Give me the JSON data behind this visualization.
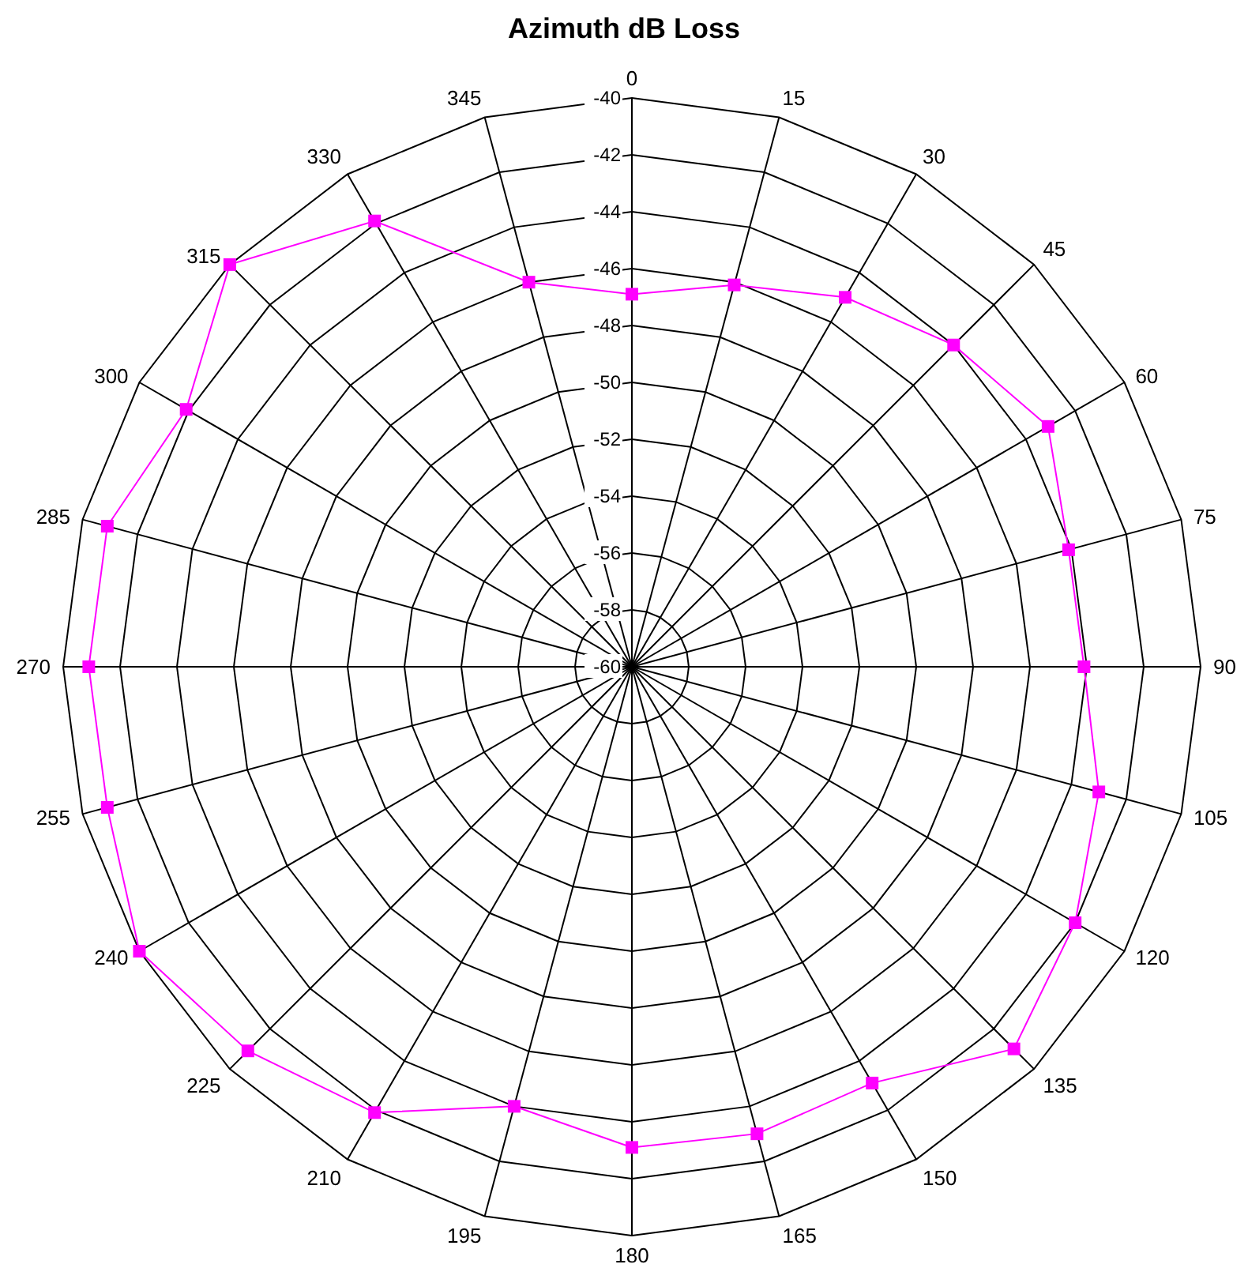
{
  "chart_data": {
    "type": "radar",
    "title": "Azimuth dB Loss",
    "categories": [
      "0",
      "15",
      "30",
      "45",
      "60",
      "75",
      "90",
      "105",
      "120",
      "135",
      "150",
      "165",
      "180",
      "195",
      "210",
      "225",
      "240",
      "255",
      "270",
      "285",
      "300",
      "315",
      "330",
      "345"
    ],
    "series": [
      {
        "color": "#ff00ff",
        "values": [
          -46.9,
          -46.1,
          -45.0,
          -44.0,
          -43.1,
          -44.1,
          -44.1,
          -43.0,
          -42.0,
          -41.0,
          -43.1,
          -43.0,
          -43.1,
          -44.0,
          -41.9,
          -40.9,
          -40.0,
          -40.9,
          -40.9,
          -40.9,
          -41.9,
          -40.0,
          -41.9,
          -46.0
        ]
      }
    ],
    "ylim": [
      -60,
      -40
    ],
    "yticks": [
      -60,
      -58,
      -56,
      -54,
      -52,
      -50,
      -48,
      -46,
      -44,
      -42,
      -40
    ],
    "grid": true,
    "marker": "square",
    "legend": false
  }
}
